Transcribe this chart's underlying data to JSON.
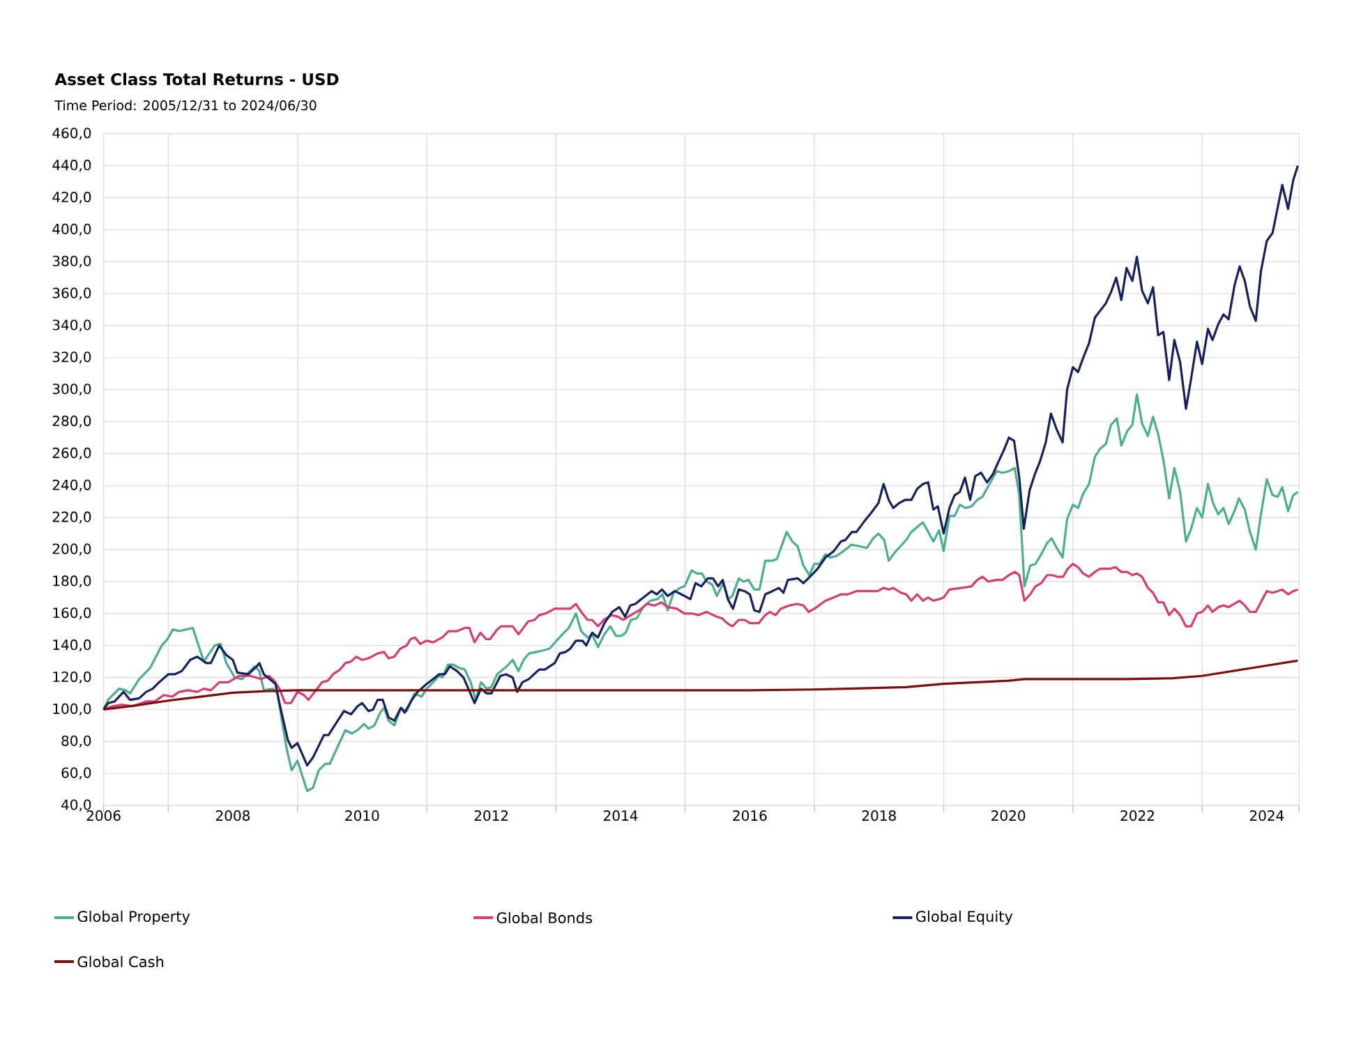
{
  "chart_data": {
    "type": "line",
    "title": "Asset Class Total Returns - USD",
    "subtitle": "Time Period: 2005/12/31 to 2024/06/30",
    "xlim": [
      2006.0,
      2024.5
    ],
    "xticks": [
      {
        "value": 2006.0,
        "label": null
      },
      {
        "value": 2007.0,
        "label": null
      },
      {
        "value": 2009.0,
        "label": null
      },
      {
        "value": 2011.0,
        "label": null
      },
      {
        "value": 2013.0,
        "label": null
      },
      {
        "value": 2015.0,
        "label": null
      },
      {
        "value": 2017.0,
        "label": null
      },
      {
        "value": 2019.0,
        "label": null
      },
      {
        "value": 2021.0,
        "label": null
      },
      {
        "value": 2023.0,
        "label": null
      },
      {
        "value": 2024.5,
        "label": null
      },
      2006,
      2008,
      2010,
      2012,
      2014,
      2016,
      2018,
      2020,
      2022,
      2024
    ],
    "ylim": [
      40,
      460
    ],
    "yticks": [
      {
        "value": 40,
        "label": "40,0"
      },
      {
        "value": 60,
        "label": "60,0"
      },
      {
        "value": 80,
        "label": "80,0"
      },
      {
        "value": 100,
        "label": "100,0"
      },
      {
        "value": 120,
        "label": "120,0"
      },
      {
        "value": 140,
        "label": "140,0"
      },
      {
        "value": 160,
        "label": "160,0"
      },
      {
        "value": 180,
        "label": "180,0"
      },
      {
        "value": 200,
        "label": "200,0"
      },
      {
        "value": 220,
        "label": "220,0"
      },
      {
        "value": 240,
        "label": "240,0"
      },
      {
        "value": 260,
        "label": "260,0"
      },
      {
        "value": 280,
        "label": "280,0"
      },
      {
        "value": 300,
        "label": "300,0"
      },
      {
        "value": 320,
        "label": "320,0"
      },
      {
        "value": 340,
        "label": "340,0"
      },
      {
        "value": 360,
        "label": "360,0"
      },
      {
        "value": 380,
        "label": "380,0"
      },
      {
        "value": 400,
        "label": "400,0"
      },
      {
        "value": 420,
        "label": "420,0"
      },
      {
        "value": 440,
        "label": "440,0"
      },
      {
        "value": 460,
        "label": "460,0"
      }
    ],
    "grid": true,
    "legend": "bottom",
    "marker": "none",
    "line_style": "solid",
    "series": [
      {
        "name": "Global Property",
        "color": "#4dae8b",
        "x": [
          2006.0,
          2006.07,
          2006.24,
          2006.34,
          2006.41,
          2006.55,
          2006.72,
          2006.9,
          2006.99,
          2007.07,
          2007.17,
          2007.38,
          2007.55,
          2007.72,
          2007.81,
          2007.9,
          2008.03,
          2008.14,
          2008.34,
          2008.41,
          2008.48,
          2008.62,
          2008.69,
          2008.83,
          2008.91,
          2009.0,
          2009.15,
          2009.24,
          2009.33,
          2009.43,
          2009.5,
          2009.66,
          2009.74,
          2009.84,
          2009.93,
          2010.03,
          2010.1,
          2010.19,
          2010.28,
          2010.34,
          2010.41,
          2010.5,
          2010.6,
          2010.69,
          2010.81,
          2010.92,
          2011.0,
          2011.1,
          2011.19,
          2011.24,
          2011.33,
          2011.41,
          2011.5,
          2011.59,
          2011.68,
          2011.76,
          2011.84,
          2011.93,
          2012.0,
          2012.09,
          2012.15,
          2012.24,
          2012.33,
          2012.42,
          2012.5,
          2012.58,
          2012.7,
          2012.81,
          2012.9,
          2013.01,
          2013.1,
          2013.2,
          2013.31,
          2013.39,
          2013.49,
          2013.56,
          2013.65,
          2013.75,
          2013.84,
          2013.93,
          2014.01,
          2014.08,
          2014.16,
          2014.25,
          2014.35,
          2014.46,
          2014.57,
          2014.65,
          2014.73,
          2014.82,
          2014.92,
          2014.99,
          2015.1,
          2015.18,
          2015.26,
          2015.33,
          2015.42,
          2015.49,
          2015.59,
          2015.67,
          2015.73,
          2015.83,
          2015.9,
          2015.98,
          2016.07,
          2016.15,
          2016.24,
          2016.35,
          2016.42,
          2016.57,
          2016.66,
          2016.74,
          2016.83,
          2016.92,
          2017.0,
          2017.08,
          2017.17,
          2017.25,
          2017.34,
          2017.45,
          2017.57,
          2017.71,
          2017.81,
          2017.91,
          2017.99,
          2018.08,
          2018.15,
          2018.24,
          2018.33,
          2018.42,
          2018.5,
          2018.59,
          2018.68,
          2018.76,
          2018.84,
          2018.93,
          2019.0,
          2019.09,
          2019.17,
          2019.25,
          2019.34,
          2019.43,
          2019.52,
          2019.6,
          2019.71,
          2019.82,
          2019.91,
          2020.01,
          2020.1,
          2020.17,
          2020.25,
          2020.34,
          2020.42,
          2020.51,
          2020.6,
          2020.67,
          2020.75,
          2020.84,
          2020.91,
          2021.0,
          2021.08,
          2021.16,
          2021.25,
          2021.34,
          2021.42,
          2021.51,
          2021.59,
          2021.68,
          2021.75,
          2021.84,
          2021.92,
          2021.99,
          2022.07,
          2022.16,
          2022.24,
          2022.32,
          2022.4,
          2022.49,
          2022.57,
          2022.66,
          2022.75,
          2022.83,
          2022.92,
          2023.0,
          2023.09,
          2023.17,
          2023.25,
          2023.33,
          2023.41,
          2023.5,
          2023.57,
          2023.66,
          2023.74,
          2023.83,
          2023.91,
          2024.0,
          2024.09,
          2024.17,
          2024.24,
          2024.33,
          2024.41,
          2024.48
        ],
        "values": [
          100,
          106,
          113,
          112,
          110,
          119,
          126,
          140,
          144,
          150,
          149,
          151,
          130,
          140,
          141,
          129,
          120,
          119,
          127,
          124,
          112,
          113,
          110,
          76,
          62,
          68,
          49,
          51,
          62,
          66,
          66,
          80,
          87,
          85,
          87,
          91,
          88,
          90,
          98,
          101,
          93,
          90,
          101,
          99,
          110,
          108,
          113,
          117,
          121,
          120,
          128,
          128,
          126,
          125,
          117,
          106,
          117,
          113,
          114,
          122,
          124,
          127,
          131,
          124,
          131,
          135,
          136,
          137,
          138,
          143,
          147,
          151,
          160,
          149,
          145,
          147,
          139,
          147,
          152,
          146,
          146,
          148,
          156,
          157,
          164,
          168,
          169,
          172,
          162,
          173,
          176,
          177,
          187,
          185,
          185,
          180,
          178,
          171,
          179,
          169,
          171,
          182,
          180,
          181,
          175,
          175,
          193,
          193,
          194,
          211,
          205,
          202,
          190,
          184,
          191,
          191,
          197,
          195,
          196,
          199,
          203,
          202,
          201,
          207,
          210,
          206,
          193,
          198,
          202,
          206,
          211,
          214,
          217,
          211,
          205,
          212,
          199,
          221,
          221,
          228,
          226,
          227,
          231,
          233,
          241,
          249,
          248,
          249,
          251,
          234,
          177,
          190,
          191,
          197,
          204,
          207,
          201,
          195,
          219,
          228,
          226,
          235,
          241,
          258,
          263,
          266,
          278,
          282,
          265,
          274,
          278,
          297,
          279,
          271,
          283,
          272,
          256,
          232,
          251,
          236,
          205,
          213,
          226,
          220,
          241,
          229,
          222,
          226,
          216,
          224,
          232,
          225,
          211,
          200,
          222,
          244,
          234,
          233,
          239,
          224,
          234,
          236
        ]
      },
      {
        "name": "Global Bonds",
        "color": "#d63c72",
        "x": [
          2006.0,
          2006.14,
          2006.28,
          2006.45,
          2006.66,
          2006.79,
          2006.93,
          2007.06,
          2007.17,
          2007.31,
          2007.45,
          2007.55,
          2007.66,
          2007.79,
          2007.93,
          2008.1,
          2008.27,
          2008.44,
          2008.56,
          2008.64,
          2008.72,
          2008.81,
          2008.9,
          2009.0,
          2009.1,
          2009.17,
          2009.38,
          2009.47,
          2009.55,
          2009.66,
          2009.74,
          2009.83,
          2009.91,
          2010.0,
          2010.1,
          2010.24,
          2010.34,
          2010.41,
          2010.5,
          2010.59,
          2010.69,
          2010.75,
          2010.82,
          2010.9,
          2011.0,
          2011.1,
          2011.24,
          2011.34,
          2011.47,
          2011.59,
          2011.66,
          2011.74,
          2011.83,
          2011.92,
          2011.98,
          2012.09,
          2012.15,
          2012.33,
          2012.42,
          2012.57,
          2012.67,
          2012.74,
          2012.84,
          2012.98,
          2013.12,
          2013.22,
          2013.31,
          2013.41,
          2013.49,
          2013.56,
          2013.65,
          2013.74,
          2013.86,
          2013.96,
          2014.04,
          2014.16,
          2014.29,
          2014.41,
          2014.53,
          2014.63,
          2014.73,
          2014.87,
          2014.99,
          2015.11,
          2015.21,
          2015.33,
          2015.49,
          2015.57,
          2015.65,
          2015.73,
          2015.83,
          2015.92,
          2016.0,
          2016.14,
          2016.24,
          2016.31,
          2016.4,
          2016.48,
          2016.61,
          2016.73,
          2016.83,
          2016.91,
          2017.0,
          2017.07,
          2017.17,
          2017.3,
          2017.41,
          2017.52,
          2017.65,
          2017.82,
          2017.98,
          2018.07,
          2018.15,
          2018.22,
          2018.34,
          2018.42,
          2018.5,
          2018.59,
          2018.68,
          2018.76,
          2018.84,
          2018.93,
          2019.0,
          2019.09,
          2019.27,
          2019.43,
          2019.52,
          2019.6,
          2019.69,
          2019.82,
          2019.91,
          2020.01,
          2020.1,
          2020.17,
          2020.25,
          2020.34,
          2020.42,
          2020.51,
          2020.6,
          2020.68,
          2020.76,
          2020.85,
          2020.92,
          2021.0,
          2021.08,
          2021.16,
          2021.25,
          2021.34,
          2021.42,
          2021.58,
          2021.66,
          2021.75,
          2021.84,
          2021.92,
          2021.99,
          2022.07,
          2022.16,
          2022.24,
          2022.32,
          2022.4,
          2022.49,
          2022.57,
          2022.66,
          2022.75,
          2022.83,
          2022.92,
          2023.0,
          2023.09,
          2023.16,
          2023.25,
          2023.33,
          2023.41,
          2023.58,
          2023.66,
          2023.74,
          2023.83,
          2024.0,
          2024.09,
          2024.17,
          2024.24,
          2024.33,
          2024.41,
          2024.48
        ],
        "values": [
          100,
          102,
          103,
          102,
          105,
          105,
          109,
          108,
          111,
          112,
          111,
          113,
          112,
          117,
          117,
          121,
          121,
          119,
          121,
          118,
          113,
          104,
          104,
          111,
          109,
          106,
          117,
          118,
          122,
          125,
          129,
          130,
          133,
          131,
          132,
          135,
          136,
          132,
          133,
          138,
          140,
          144,
          145,
          141,
          143,
          142,
          145,
          149,
          149,
          151,
          151,
          142,
          148,
          144,
          144,
          150,
          152,
          152,
          147,
          155,
          156,
          159,
          160,
          163,
          163,
          163,
          166,
          160,
          156,
          156,
          152,
          156,
          159,
          158,
          156,
          159,
          162,
          166,
          165,
          167,
          164,
          163,
          160,
          160,
          159,
          161,
          158,
          157,
          154,
          152,
          156,
          156,
          154,
          154,
          159,
          161,
          159,
          163,
          165,
          166,
          165,
          161,
          163,
          165,
          168,
          170,
          172,
          172,
          174,
          174,
          174,
          176,
          175,
          176,
          173,
          172,
          168,
          172,
          168,
          170,
          168,
          169,
          170,
          175,
          176,
          177,
          181,
          183,
          180,
          181,
          181,
          184,
          186,
          184,
          168,
          172,
          177,
          179,
          184,
          184,
          183,
          183,
          188,
          191,
          189,
          185,
          183,
          186,
          188,
          188,
          189,
          186,
          186,
          184,
          185,
          183,
          176,
          173,
          167,
          167,
          159,
          163,
          159,
          152,
          152,
          160,
          161,
          165,
          161,
          164,
          165,
          164,
          168,
          165,
          161,
          161,
          174,
          173,
          174,
          175,
          172,
          174,
          175
        ]
      },
      {
        "name": "Global Equity",
        "color": "#15215f",
        "x": [
          2006.0,
          2006.07,
          2006.17,
          2006.31,
          2006.41,
          2006.55,
          2006.66,
          2006.76,
          2006.86,
          2007.0,
          2007.1,
          2007.21,
          2007.34,
          2007.45,
          2007.59,
          2007.66,
          2007.79,
          2007.9,
          2008.0,
          2008.07,
          2008.24,
          2008.37,
          2008.41,
          2008.48,
          2008.66,
          2008.72,
          2008.85,
          2008.91,
          2009.0,
          2009.15,
          2009.24,
          2009.41,
          2009.48,
          2009.59,
          2009.72,
          2009.83,
          2009.93,
          2010.0,
          2010.1,
          2010.17,
          2010.24,
          2010.32,
          2010.41,
          2010.5,
          2010.6,
          2010.66,
          2010.77,
          2010.86,
          2011.0,
          2011.1,
          2011.19,
          2011.28,
          2011.36,
          2011.47,
          2011.57,
          2011.74,
          2011.84,
          2011.93,
          2012.0,
          2012.14,
          2012.23,
          2012.33,
          2012.4,
          2012.48,
          2012.58,
          2012.74,
          2012.83,
          2012.98,
          2013.06,
          2013.15,
          2013.22,
          2013.31,
          2013.41,
          2013.47,
          2013.56,
          2013.65,
          2013.75,
          2013.87,
          2013.98,
          2014.07,
          2014.15,
          2014.23,
          2014.32,
          2014.48,
          2014.56,
          2014.64,
          2014.73,
          2014.84,
          2014.94,
          2015.08,
          2015.16,
          2015.25,
          2015.35,
          2015.43,
          2015.51,
          2015.58,
          2015.66,
          2015.74,
          2015.83,
          2015.92,
          2016.0,
          2016.07,
          2016.15,
          2016.24,
          2016.35,
          2016.45,
          2016.52,
          2016.59,
          2016.74,
          2016.83,
          2016.93,
          2017.05,
          2017.17,
          2017.3,
          2017.41,
          2017.48,
          2017.58,
          2017.65,
          2017.76,
          2017.88,
          2017.99,
          2018.07,
          2018.15,
          2018.22,
          2018.31,
          2018.4,
          2018.42,
          2018.5,
          2018.59,
          2018.68,
          2018.76,
          2018.84,
          2018.91,
          2019.0,
          2019.09,
          2019.17,
          2019.25,
          2019.33,
          2019.41,
          2019.49,
          2019.58,
          2019.67,
          2019.76,
          2019.86,
          2019.93,
          2020.01,
          2020.09,
          2020.17,
          2020.24,
          2020.33,
          2020.41,
          2020.49,
          2020.58,
          2020.66,
          2020.75,
          2020.84,
          2020.91,
          2021.0,
          2021.08,
          2021.16,
          2021.25,
          2021.34,
          2021.51,
          2021.59,
          2021.67,
          2021.75,
          2021.83,
          2021.92,
          2021.99,
          2022.07,
          2022.16,
          2022.24,
          2022.32,
          2022.4,
          2022.49,
          2022.57,
          2022.66,
          2022.75,
          2022.83,
          2022.92,
          2023.0,
          2023.09,
          2023.16,
          2023.25,
          2023.33,
          2023.41,
          2023.5,
          2023.58,
          2023.66,
          2023.74,
          2023.83,
          2023.91,
          2024.0,
          2024.09,
          2024.17,
          2024.24,
          2024.33,
          2024.41,
          2024.48
        ],
        "values": [
          100,
          104,
          105,
          111,
          106,
          107,
          111,
          113,
          117,
          122,
          122,
          124,
          131,
          133,
          129,
          129,
          140,
          134,
          131,
          123,
          122,
          127,
          129,
          122,
          116,
          104,
          81,
          76,
          79,
          65,
          70,
          84,
          84,
          91,
          99,
          97,
          102,
          104,
          99,
          100,
          106,
          106,
          95,
          93,
          101,
          98,
          106,
          111,
          116,
          119,
          122,
          122,
          127,
          124,
          120,
          104,
          113,
          110,
          110,
          121,
          122,
          120,
          111,
          117,
          119,
          125,
          125,
          129,
          135,
          136,
          138,
          143,
          143,
          140,
          148,
          145,
          154,
          161,
          164,
          158,
          165,
          166,
          169,
          174,
          172,
          175,
          171,
          174,
          172,
          169,
          179,
          177,
          182,
          182,
          177,
          181,
          169,
          163,
          175,
          174,
          172,
          162,
          161,
          172,
          174,
          176,
          173,
          181,
          182,
          179,
          183,
          188,
          195,
          199,
          205,
          206,
          211,
          211,
          217,
          223,
          229,
          241,
          231,
          226,
          229,
          231,
          231,
          231,
          238,
          241,
          242,
          225,
          227,
          210,
          226,
          234,
          236,
          245,
          231,
          246,
          248,
          242,
          247,
          256,
          262,
          270,
          268,
          245,
          213,
          237,
          247,
          255,
          267,
          285,
          275,
          267,
          300,
          314,
          311,
          320,
          329,
          345,
          354,
          361,
          370,
          356,
          376,
          368,
          383,
          362,
          354,
          364,
          334,
          336,
          306,
          331,
          317,
          288,
          307,
          330,
          316,
          338,
          331,
          341,
          347,
          344,
          365,
          377,
          368,
          352,
          343,
          374,
          393,
          398,
          414,
          428,
          413,
          431,
          440
        ]
      },
      {
        "name": "Global Cash",
        "color": "#7d0c0c",
        "x": [
          2006.0,
          2006.5,
          2007.0,
          2007.5,
          2008.0,
          2008.5,
          2009.0,
          2016.0,
          2017.0,
          2017.5,
          2018.42,
          2019.0,
          2020.01,
          2020.25,
          2021.85,
          2022.54,
          2023.0,
          2023.78,
          2024.48
        ],
        "values": [
          100,
          102.5,
          105.5,
          108,
          110.5,
          111.5,
          112,
          112,
          112.5,
          113,
          114,
          116,
          118,
          119,
          119,
          119.5,
          121,
          126,
          130.5
        ]
      }
    ]
  }
}
